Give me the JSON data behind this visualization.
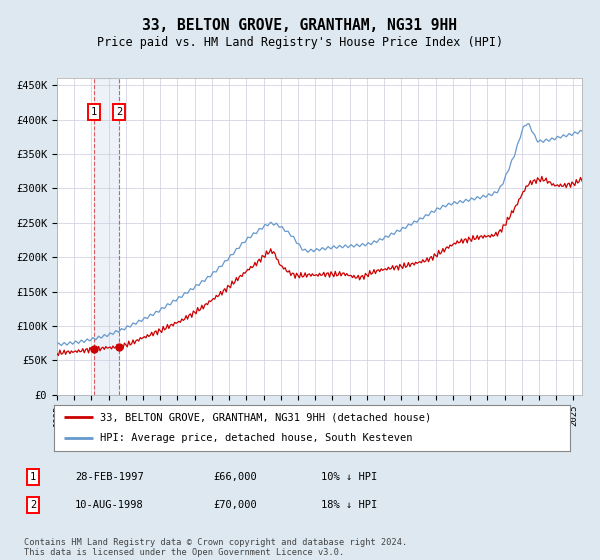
{
  "title": "33, BELTON GROVE, GRANTHAM, NG31 9HH",
  "subtitle": "Price paid vs. HM Land Registry's House Price Index (HPI)",
  "legend_line1": "33, BELTON GROVE, GRANTHAM, NG31 9HH (detached house)",
  "legend_line2": "HPI: Average price, detached house, South Kesteven",
  "table_rows": [
    [
      "1",
      "28-FEB-1997",
      "£66,000",
      "10% ↓ HPI"
    ],
    [
      "2",
      "10-AUG-1998",
      "£70,000",
      "18% ↓ HPI"
    ]
  ],
  "footer": "Contains HM Land Registry data © Crown copyright and database right 2024.\nThis data is licensed under the Open Government Licence v3.0.",
  "red_color": "#cc0000",
  "blue_color": "#6699cc",
  "vline1_x": 1997.15,
  "vline2_x": 1998.61,
  "marker1_y": 66000,
  "marker2_y": 70000,
  "xmin": 1995.0,
  "xmax": 2025.5,
  "ymin": 0,
  "ymax": 460000,
  "yticks": [
    0,
    50000,
    100000,
    150000,
    200000,
    250000,
    300000,
    350000,
    400000,
    450000
  ],
  "ytick_labels": [
    "£0",
    "£50K",
    "£100K",
    "£150K",
    "£200K",
    "£250K",
    "£300K",
    "£350K",
    "£400K",
    "£450K"
  ],
  "background_color": "#dde8f0",
  "plot_bg_color": "#ffffff",
  "grid_color": "#ccccdd"
}
